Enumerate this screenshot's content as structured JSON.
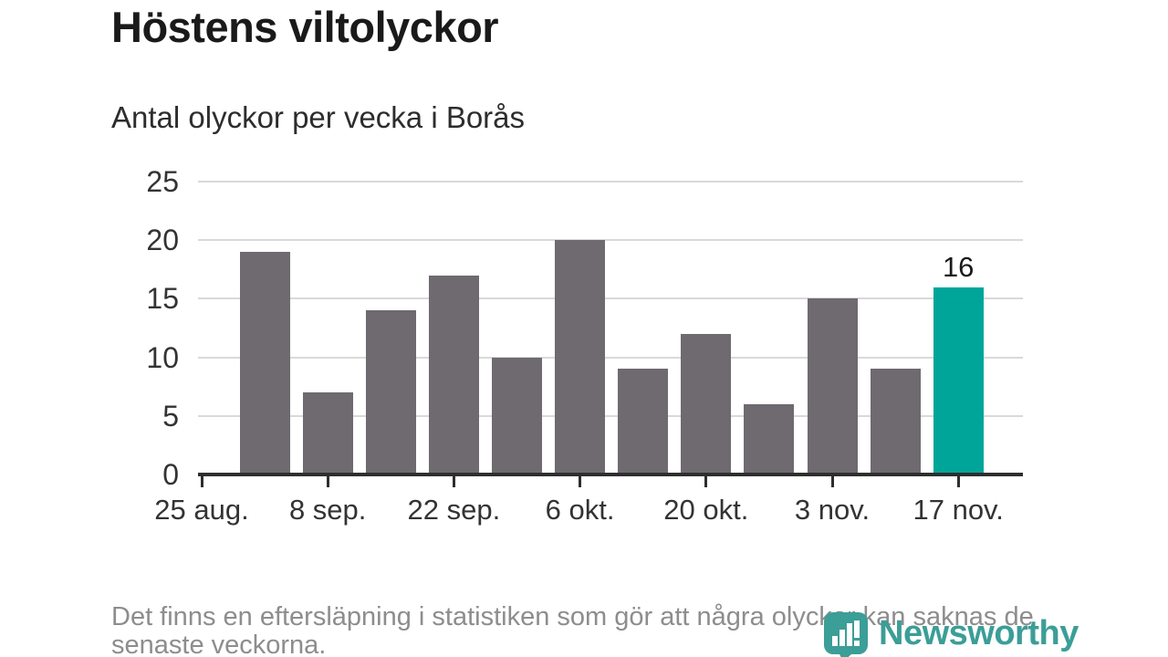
{
  "title": "Höstens viltolyckor",
  "subtitle": "Antal olyckor per vecka i Borås",
  "footer": {
    "line1": "Det finns en eftersläpning i statistiken som gör att några olyckor kan saknas de",
    "line2": "senaste veckorna."
  },
  "logo": {
    "wordmark": "Newsworthy",
    "icon": "speech-bubble-bar-chart-icon",
    "color": "#3b9e97"
  },
  "colors": {
    "bar": "#6e6a70",
    "highlight": "#00a59a",
    "grid": "#d9d9d9",
    "axis": "#2e2e2e",
    "title_text": "#1a1a1a",
    "tick_text": "#333333",
    "footnote_text": "#8d8d8d"
  },
  "chart_data": {
    "type": "bar",
    "title": "Höstens viltolyckor",
    "subtitle": "Antal olyckor per vecka i Borås",
    "ylabel": "",
    "xlabel": "",
    "n_slots": 13,
    "values": [
      null,
      19,
      7,
      14,
      17,
      10,
      20,
      9,
      12,
      6,
      15,
      9,
      16
    ],
    "tick_positions": [
      0,
      2,
      4,
      6,
      8,
      10,
      12
    ],
    "tick_labels": [
      "25 aug.",
      "8 sep.",
      "22 sep.",
      "6 okt.",
      "20 okt.",
      "3 nov.",
      "17 nov."
    ],
    "yticks": [
      0,
      5,
      10,
      15,
      20,
      25
    ],
    "ylim": [
      0,
      25
    ],
    "grid": true,
    "legend": "none",
    "highlight_index": 12,
    "highlight_value_label": "16"
  }
}
